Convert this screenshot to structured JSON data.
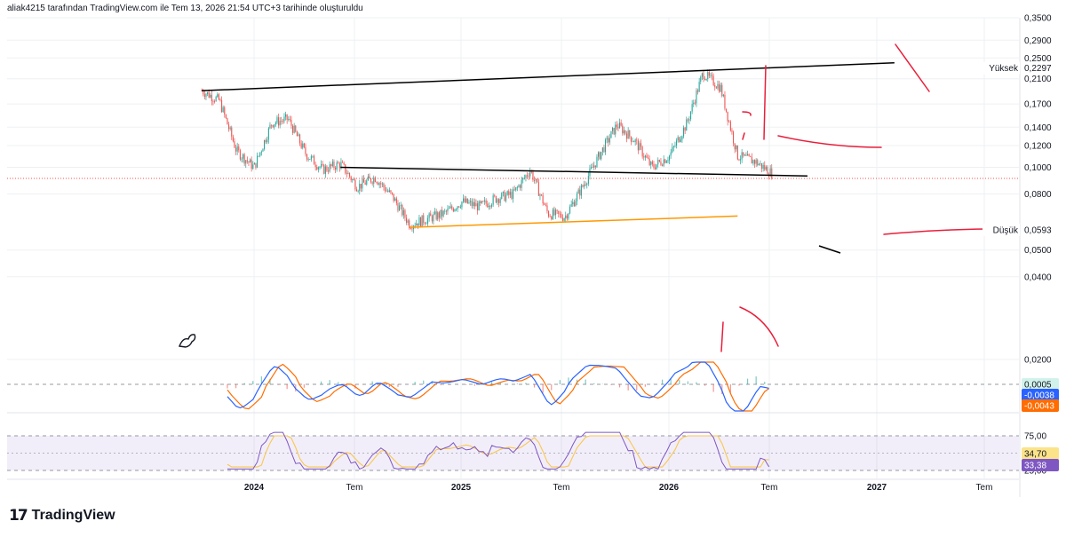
{
  "header": {
    "attribution": "aliak4215 tarafından TradingView.com ile Tem 13, 2026 21:54 UTC+3 tarihinde oluşturuldu"
  },
  "brand": {
    "mark": "17",
    "name": "TradingView"
  },
  "colors": {
    "up": "#26a69a",
    "down": "#ef5350",
    "drawing_red": "#e91e3a",
    "trend": "#000000",
    "support": "#ff9800",
    "macd": "#2962ff",
    "signal": "#ff6d00",
    "rsi": "#7e57c2",
    "rsi_ma": "#f9c74f"
  },
  "chart_data": [
    {
      "type": "candlestick",
      "scale": "log",
      "x_labels": [
        "2024",
        "Tem",
        "2025",
        "Tem",
        "2026",
        "Tem",
        "2027",
        "Tem"
      ],
      "y_ticks": [
        "0,3500",
        "0,2900",
        "0,2500",
        "0,2100",
        "0,1700",
        "0,1400",
        "0,1200",
        "0,1000",
        "0,0800",
        "0,0500",
        "0,0400",
        "0,0200"
      ],
      "ylim": [
        0.02,
        0.35
      ],
      "price_path": [
        {
          "x": "2023-10",
          "y": 0.19
        },
        {
          "x": "2023-11",
          "y": 0.175
        },
        {
          "x": "2023-12",
          "y": 0.115
        },
        {
          "x": "2024-01",
          "y": 0.1
        },
        {
          "x": "2024-02",
          "y": 0.145
        },
        {
          "x": "2024-03",
          "y": 0.15
        },
        {
          "x": "2024-04",
          "y": 0.112
        },
        {
          "x": "2024-05",
          "y": 0.098
        },
        {
          "x": "2024-06",
          "y": 0.103
        },
        {
          "x": "2024-07",
          "y": 0.085
        },
        {
          "x": "2024-08",
          "y": 0.092
        },
        {
          "x": "2024-09",
          "y": 0.078
        },
        {
          "x": "2024-10",
          "y": 0.062
        },
        {
          "x": "2024-11",
          "y": 0.065
        },
        {
          "x": "2024-12",
          "y": 0.068
        },
        {
          "x": "2025-01",
          "y": 0.075
        },
        {
          "x": "2025-02",
          "y": 0.072
        },
        {
          "x": "2025-03",
          "y": 0.077
        },
        {
          "x": "2025-04",
          "y": 0.08
        },
        {
          "x": "2025-05",
          "y": 0.098
        },
        {
          "x": "2025-06",
          "y": 0.068
        },
        {
          "x": "2025-07",
          "y": 0.066
        },
        {
          "x": "2025-08",
          "y": 0.085
        },
        {
          "x": "2025-09",
          "y": 0.112
        },
        {
          "x": "2025-10",
          "y": 0.143
        },
        {
          "x": "2025-11",
          "y": 0.125
        },
        {
          "x": "2025-12",
          "y": 0.1
        },
        {
          "x": "2026-01",
          "y": 0.11
        },
        {
          "x": "2026-02",
          "y": 0.145
        },
        {
          "x": "2026-03",
          "y": 0.22
        },
        {
          "x": "2026-04",
          "y": 0.195
        },
        {
          "x": "2026-05",
          "y": 0.11
        },
        {
          "x": "2026-06",
          "y": 0.105
        },
        {
          "x": "2026-07",
          "y": 0.095
        }
      ],
      "price_tags": [
        {
          "label": "Yüksek",
          "value": "0,2297"
        },
        {
          "label": "Düşük",
          "value": "0,0593"
        }
      ],
      "trendlines": [
        {
          "name": "upper",
          "from": {
            "x": "2023-10",
            "y": 0.19
          },
          "to": {
            "x": "2027-02",
            "y": 0.24
          }
        },
        {
          "name": "middle",
          "from": {
            "x": "2024-06",
            "y": 0.1
          },
          "to": {
            "x": "2026-09",
            "y": 0.093
          }
        },
        {
          "name": "support",
          "from": {
            "x": "2024-10",
            "y": 0.0605
          },
          "to": {
            "x": "2026-05",
            "y": 0.0665
          }
        }
      ]
    },
    {
      "type": "line",
      "name": "MACD",
      "tags": [
        "0,0005",
        "-0,0038",
        "-0,0043"
      ]
    },
    {
      "type": "line",
      "name": "RSI",
      "y_ticks": [
        "75,00",
        "25,00"
      ],
      "ylim": [
        25,
        75
      ],
      "tags": [
        "34,70",
        "33,38"
      ]
    }
  ]
}
